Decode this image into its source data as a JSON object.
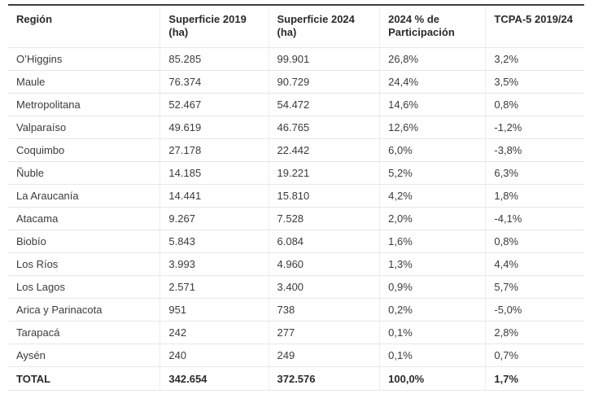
{
  "colors": {
    "text": "#3b3b3b",
    "text-strong": "#2a2a2a",
    "border-top": "#3d3d3d",
    "separator": "#e7e7e7",
    "col-separator": "#ededed",
    "total-rule": "#c4c4c4",
    "bg": "#ffffff"
  },
  "chart_data": {
    "type": "table",
    "columns": [
      "Región",
      "Superficie 2019 (ha)",
      "Superficie 2024 (ha)",
      "2024 % de Participación",
      "TCPA-5 2019/24"
    ],
    "rows": [
      [
        "O’Higgins",
        "85.285",
        "99.901",
        "26,8%",
        "3,2%"
      ],
      [
        "Maule",
        "76.374",
        "90.729",
        "24,4%",
        "3,5%"
      ],
      [
        "Metropolitana",
        "52.467",
        "54.472",
        "14,6%",
        "0,8%"
      ],
      [
        "Valparaíso",
        "49.619",
        "46.765",
        "12,6%",
        "-1,2%"
      ],
      [
        "Coquimbo",
        "27.178",
        "22.442",
        "6,0%",
        "-3,8%"
      ],
      [
        "Ñuble",
        "14.185",
        "19.221",
        "5,2%",
        "6,3%"
      ],
      [
        "La Araucanía",
        "14.441",
        "15.810",
        "4,2%",
        "1,8%"
      ],
      [
        "Atacama",
        "9.267",
        "7.528",
        "2,0%",
        "-4,1%"
      ],
      [
        "Biobío",
        "5.843",
        "6.084",
        "1,6%",
        "0,8%"
      ],
      [
        "Los Ríos",
        "3.993",
        "4.960",
        "1,3%",
        "4,4%"
      ],
      [
        "Los Lagos",
        "2.571",
        "3.400",
        "0,9%",
        "5,7%"
      ],
      [
        "Arica y Parinacota",
        "951",
        "738",
        "0,2%",
        "-5,0%"
      ],
      [
        "Tarapacá",
        "242",
        "277",
        "0,1%",
        "2,8%"
      ],
      [
        "Aysén",
        "240",
        "249",
        "0,1%",
        "0,7%"
      ]
    ],
    "total_row": [
      "TOTAL",
      "342.654",
      "372.576",
      "100,0%",
      "1,7%"
    ]
  }
}
